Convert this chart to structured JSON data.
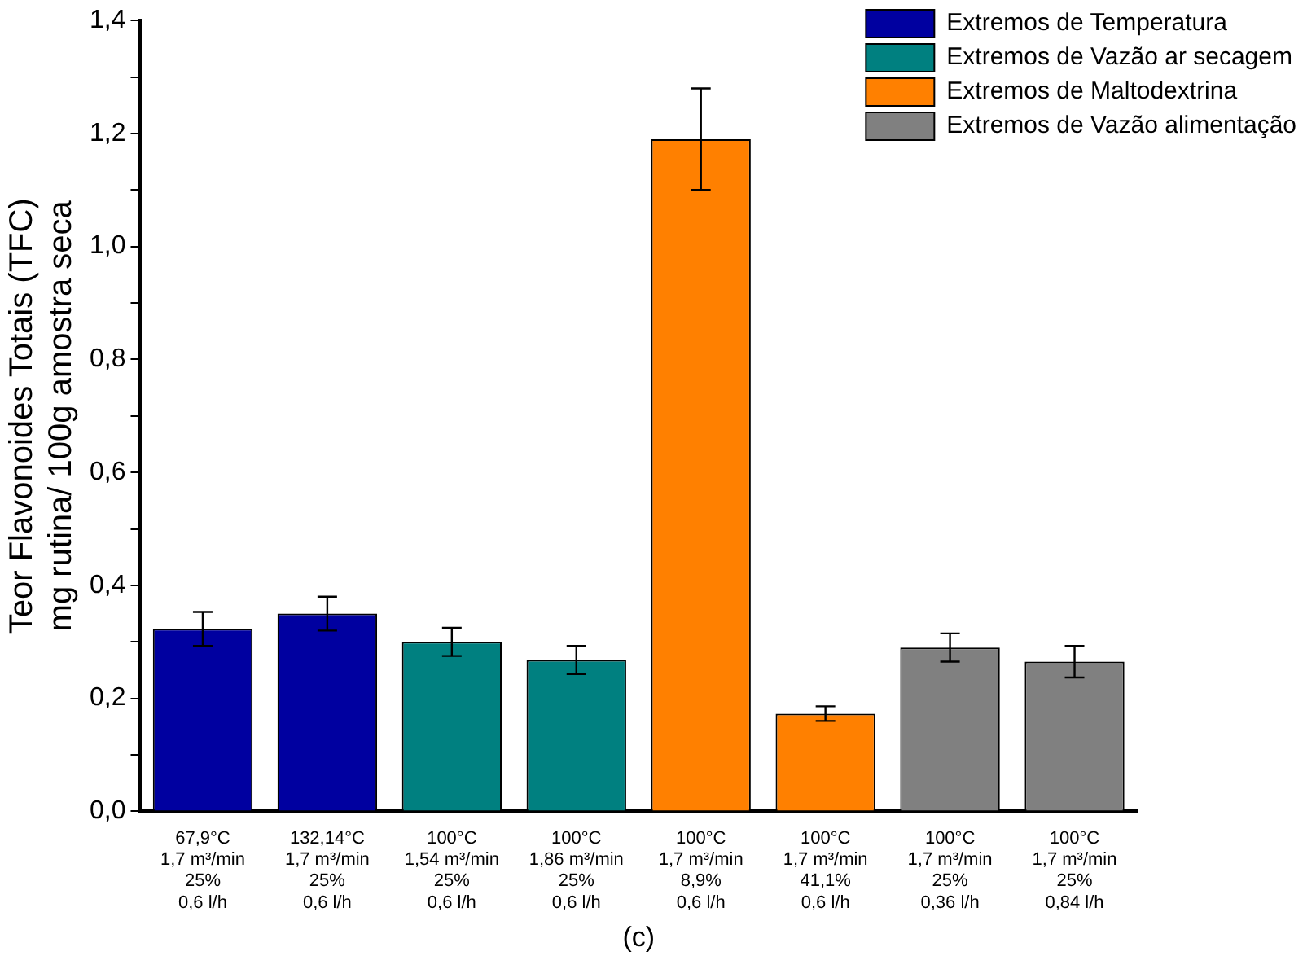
{
  "chart_data": {
    "type": "bar",
    "ylabel": "Teor Flavonoides Totais (TFC)\nmg rutina/ 100g amostra seca",
    "categories": [
      "67,9°C\n1,7 m³/min\n25%\n0,6 l/h",
      "132,14°C\n1,7 m³/min\n25%\n0,6 l/h",
      "100°C\n1,54 m³/min\n25%\n0,6 l/h",
      "100°C\n1,86 m³/min\n25%\n0,6 l/h",
      "100°C\n1,7 m³/min\n8,9%\n0,6 l/h",
      "100°C\n1,7 m³/min\n41,1%\n0,6 l/h",
      "100°C\n1,7 m³/min\n25%\n0,36 l/h",
      "100°C\n1,7 m³/min\n25%\n0,84 l/h"
    ],
    "series": [
      {
        "name": "Extremos de Temperatura",
        "color": "#0000a0",
        "values": [
          0.323,
          0.35,
          null,
          null,
          null,
          null,
          null,
          null
        ],
        "errors": [
          0.03,
          0.03,
          null,
          null,
          null,
          null,
          null,
          null
        ]
      },
      {
        "name": "Extremos de Vazão ar secagem",
        "color": "#008080",
        "values": [
          null,
          null,
          0.3,
          0.268,
          null,
          null,
          null,
          null
        ],
        "errors": [
          null,
          null,
          0.025,
          0.025,
          null,
          null,
          null,
          null
        ]
      },
      {
        "name": "Extremos de Maltodextrina",
        "color": "#ff8000",
        "values": [
          null,
          null,
          null,
          null,
          1.19,
          0.173,
          null,
          null
        ],
        "errors": [
          null,
          null,
          null,
          null,
          0.09,
          0.013,
          null,
          null
        ]
      },
      {
        "name": "Extremos de Vazão alimentação",
        "color": "#808080",
        "values": [
          null,
          null,
          null,
          null,
          null,
          null,
          0.29,
          0.265
        ],
        "errors": [
          null,
          null,
          null,
          null,
          null,
          null,
          0.025,
          0.028
        ]
      }
    ],
    "ylim": [
      0,
      1.4
    ],
    "yticks": [
      {
        "value": 0,
        "label": "0,0"
      },
      {
        "value": 0.1,
        "label": null
      },
      {
        "value": 0.2,
        "label": "0,2"
      },
      {
        "value": 0.3,
        "label": null
      },
      {
        "value": 0.4,
        "label": "0,4"
      },
      {
        "value": 0.5,
        "label": null
      },
      {
        "value": 0.6,
        "label": "0,6"
      },
      {
        "value": 0.7,
        "label": null
      },
      {
        "value": 0.8,
        "label": "0,8"
      },
      {
        "value": 0.9,
        "label": null
      },
      {
        "value": 1.0,
        "label": "1,0"
      },
      {
        "value": 1.1,
        "label": null
      },
      {
        "value": 1.2,
        "label": "1,2"
      },
      {
        "value": 1.3,
        "label": null
      },
      {
        "value": 1.4,
        "label": "1,4"
      }
    ],
    "legend": "top right",
    "grid": false,
    "annotations": [
      "(c)"
    ]
  }
}
